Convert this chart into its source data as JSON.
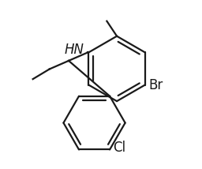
{
  "bg_color": "#ffffff",
  "line_color": "#1a1a1a",
  "text_color": "#1a1a1a",
  "lw": 1.6,
  "fs": 11,
  "r1cx": 0.595,
  "r1cy": 0.595,
  "r1r": 0.195,
  "r1rot": 30,
  "r2cx": 0.46,
  "r2cy": 0.27,
  "r2r": 0.185,
  "r2rot": 0,
  "hn_label": "HN",
  "br_label": "Br",
  "cl_label": "Cl"
}
